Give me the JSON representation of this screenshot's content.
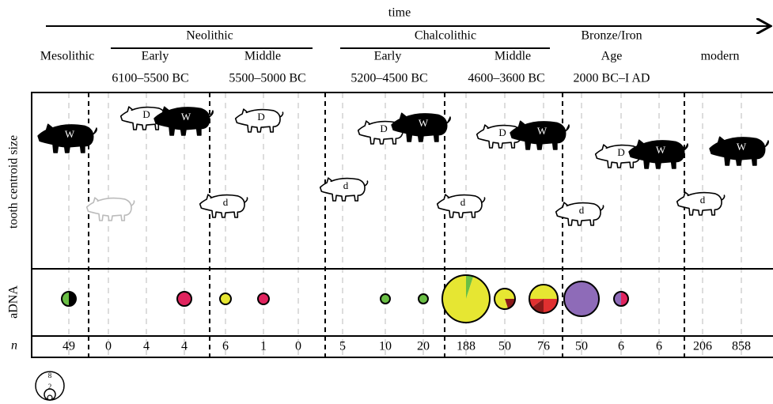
{
  "header": {
    "time": "time",
    "mesolithic": "Mesolithic",
    "neolithic": "Neolithic",
    "neo_early": "Early",
    "neo_middle": "Middle",
    "neo_early_dates": "6100–5500 BC",
    "neo_middle_dates": "5500–5000 BC",
    "chalcolithic": "Chalcolithic",
    "chal_early": "Early",
    "chal_middle": "Middle",
    "chal_early_dates": "5200–4500 BC",
    "chal_middle_dates": "4600–3600 BC",
    "bronze": "Bronze/Iron",
    "bronze_age": "Age",
    "bronze_dates": "2000 BC–I AD",
    "modern": "modern"
  },
  "row_labels": {
    "tooth": "tooth centroid size",
    "adna": "aDNA",
    "n": "n"
  },
  "pigs": [
    {
      "label": "W"
    },
    {
      "label": "D"
    },
    {
      "label": "W"
    },
    {
      "label": "D"
    },
    {
      "label": "d"
    },
    {
      "label": "d"
    },
    {
      "label": "D"
    },
    {
      "label": "W"
    },
    {
      "label": "d"
    },
    {
      "label": "D"
    },
    {
      "label": "W"
    },
    {
      "label": "d"
    },
    {
      "label": "D"
    },
    {
      "label": "W"
    },
    {
      "label": "d"
    },
    {
      "label": "W"
    }
  ],
  "adna": [
    {
      "segments": [
        {
          "color": "#000000",
          "share": 50
        },
        {
          "color": "#6abf45",
          "share": 50
        }
      ]
    },
    {
      "segments": [
        {
          "color": "#e0245e",
          "share": 100
        }
      ]
    },
    {
      "segments": [
        {
          "color": "#e6e632",
          "share": 100
        }
      ]
    },
    {
      "segments": [
        {
          "color": "#e0245e",
          "share": 100
        }
      ]
    },
    {
      "segments": [
        {
          "color": "#6abf45",
          "share": 100
        }
      ]
    },
    {
      "segments": [
        {
          "color": "#6abf45",
          "share": 100
        }
      ]
    },
    {
      "segments": [
        {
          "color": "#6abf45",
          "share": 5
        },
        {
          "color": "#e6e632",
          "share": 95
        }
      ]
    },
    {
      "segments": [
        {
          "color": "#e6e632",
          "share": 25
        },
        {
          "color": "#8b1a1a",
          "share": 20
        },
        {
          "color": "#e6e632",
          "share": 55
        }
      ]
    },
    {
      "segments": [
        {
          "color": "#e6e632",
          "share": 25
        },
        {
          "color": "#e03030",
          "share": 25
        },
        {
          "color": "#8b1a1a",
          "share": 15
        },
        {
          "color": "#e03030",
          "share": 10
        },
        {
          "color": "#e6e632",
          "share": 25
        }
      ]
    },
    {
      "segments": [
        {
          "color": "#8e6bb8",
          "share": 100
        }
      ]
    },
    {
      "segments": [
        {
          "color": "#e0245e",
          "share": 50
        },
        {
          "color": "#8e6bb8",
          "share": 50
        }
      ]
    }
  ],
  "n_values": [
    49,
    0,
    4,
    4,
    6,
    1,
    0,
    5,
    10,
    20,
    188,
    50,
    76,
    50,
    6,
    6,
    206,
    858
  ],
  "legend": {
    "outer": "8",
    "inner": "2"
  }
}
